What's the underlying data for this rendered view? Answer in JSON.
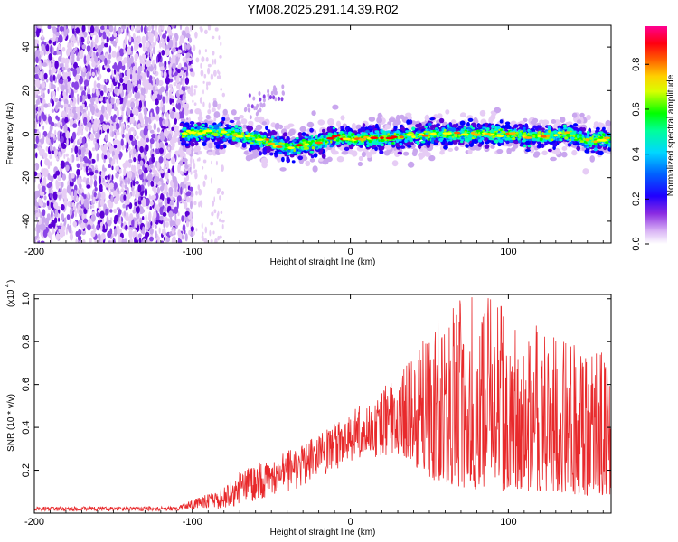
{
  "figure": {
    "title": "YM08.2025.291.14.39.R02"
  },
  "colors": {
    "colormap": [
      "#ffffff",
      "#e6ccf5",
      "#c9a6ee",
      "#8a44e6",
      "#5b00d6",
      "#2a00ff",
      "#0000ff",
      "#0077ff",
      "#00d7ff",
      "#00ffb4",
      "#00ff00",
      "#9aff00",
      "#ffff00",
      "#ffb000",
      "#ff6000",
      "#ff0000",
      "#ff0055",
      "#ff00aa"
    ],
    "snr_line": "#e8292b"
  },
  "chart_data": [
    {
      "type": "heatmap",
      "title": "",
      "xlabel": "Height of straight line (km)",
      "ylabel": "Frequency (Hz)",
      "xlim": [
        -200,
        165
      ],
      "ylim": [
        -50,
        50
      ],
      "xticks": [
        "-200",
        "-100",
        "0",
        "100"
      ],
      "yticks": [
        "40",
        "20",
        "0",
        "-20",
        "-40"
      ],
      "colorbar": {
        "label": "Normalized spectral amplitude",
        "range": [
          0,
          0.97
        ],
        "ticks": [
          "0.0",
          "0.2",
          "0.4",
          "0.6",
          "0.8"
        ]
      },
      "description_data": {
        "noise_region_x": [
          -200,
          -100
        ],
        "sparse_noise_x": [
          -100,
          -80
        ],
        "signal_band_x": [
          -107,
          165
        ],
        "signal_center_hz": [
          {
            "x": -105,
            "f": 0
          },
          {
            "x": -90,
            "f": 1
          },
          {
            "x": -75,
            "f": 0
          },
          {
            "x": -60,
            "f": -2
          },
          {
            "x": -50,
            "f": -4
          },
          {
            "x": -40,
            "f": -6
          },
          {
            "x": -30,
            "f": -5
          },
          {
            "x": -20,
            "f": -4
          },
          {
            "x": -10,
            "f": -1
          },
          {
            "x": 0,
            "f": -2
          },
          {
            "x": 20,
            "f": -2
          },
          {
            "x": 50,
            "f": 0
          },
          {
            "x": 80,
            "f": 0
          },
          {
            "x": 100,
            "f": 0
          },
          {
            "x": 120,
            "f": -1
          },
          {
            "x": 140,
            "f": 0
          },
          {
            "x": 150,
            "f": -3
          },
          {
            "x": 165,
            "f": -2
          }
        ],
        "band_half_width_hz": 4,
        "faint_ridge": [
          {
            "x": -65,
            "f": 10
          },
          {
            "x": -45,
            "f": 20
          }
        ]
      }
    },
    {
      "type": "line",
      "title": "",
      "xlabel": "Height of straight line (km)",
      "ylabel": "SNR (10 * v/v)",
      "y_multiplier": "(x10",
      "y_multiplier_exp": "4",
      "xlim": [
        -200,
        165
      ],
      "ylim": [
        0,
        1.02
      ],
      "xticks": [
        "-200",
        "-100",
        "0",
        "100"
      ],
      "yticks": [
        "1.0",
        "0.8",
        "0.6",
        "0.4",
        "0.2"
      ],
      "series": [
        {
          "name": "SNR",
          "envelope": {
            "x": [
              -200,
              -110,
              -95,
              -80,
              -70,
              -50,
              -30,
              -10,
              10,
              35,
              50,
              70,
              90,
              110,
              130,
              150,
              165
            ],
            "lower": [
              0.01,
              0.01,
              0.02,
              0.02,
              0.04,
              0.08,
              0.12,
              0.2,
              0.26,
              0.26,
              0.16,
              0.12,
              0.1,
              0.1,
              0.1,
              0.08,
              0.08
            ],
            "upper": [
              0.03,
              0.03,
              0.08,
              0.12,
              0.2,
              0.26,
              0.32,
              0.42,
              0.52,
              0.68,
              0.9,
              1.0,
              1.02,
              0.9,
              0.85,
              0.8,
              0.72
            ]
          }
        }
      ]
    }
  ]
}
